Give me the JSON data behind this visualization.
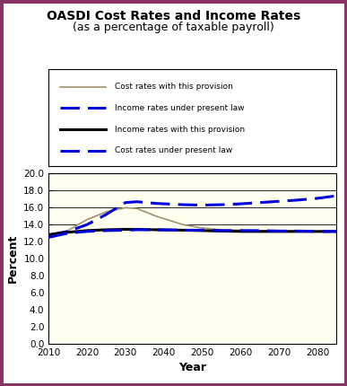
{
  "title": "OASDI Cost Rates and Income Rates",
  "subtitle": "(as a percentage of taxable payroll)",
  "xlabel": "Year",
  "ylabel": "Percent",
  "xlim": [
    2010,
    2085
  ],
  "ylim": [
    0.0,
    20.0
  ],
  "yticks": [
    0.0,
    2.0,
    4.0,
    6.0,
    8.0,
    10.0,
    12.0,
    14.0,
    16.0,
    18.0,
    20.0
  ],
  "xticks": [
    2010,
    2020,
    2030,
    2040,
    2050,
    2060,
    2070,
    2080
  ],
  "plot_bg": "#fffff0",
  "figure_bg": "#ffffff",
  "border_color": "#883366",
  "years": [
    2010,
    2015,
    2020,
    2025,
    2030,
    2033,
    2038,
    2045,
    2050,
    2055,
    2060,
    2065,
    2070,
    2075,
    2080,
    2085
  ],
  "cost_with_provision": [
    12.5,
    13.3,
    14.6,
    15.5,
    16.0,
    15.9,
    15.0,
    14.0,
    13.6,
    13.4,
    13.35,
    13.3,
    13.3,
    13.25,
    13.2,
    13.2
  ],
  "income_present_law": [
    12.8,
    13.2,
    14.0,
    15.2,
    16.6,
    16.7,
    16.5,
    16.35,
    16.3,
    16.35,
    16.45,
    16.6,
    16.75,
    16.9,
    17.1,
    17.4
  ],
  "income_with_provision": [
    12.8,
    13.1,
    13.3,
    13.4,
    13.45,
    13.45,
    13.4,
    13.35,
    13.3,
    13.25,
    13.2,
    13.2,
    13.2,
    13.2,
    13.2,
    13.2
  ],
  "cost_present_law": [
    12.5,
    13.0,
    13.2,
    13.3,
    13.35,
    13.4,
    13.4,
    13.35,
    13.35,
    13.3,
    13.3,
    13.3,
    13.25,
    13.25,
    13.2,
    13.2
  ],
  "legend_labels": [
    "Cost rates with this provision",
    "Income rates under present law",
    "Income rates with this provision",
    "Cost rates under present law"
  ],
  "fill_color": "#fffff0",
  "fill_edge": "#e8e8c0"
}
